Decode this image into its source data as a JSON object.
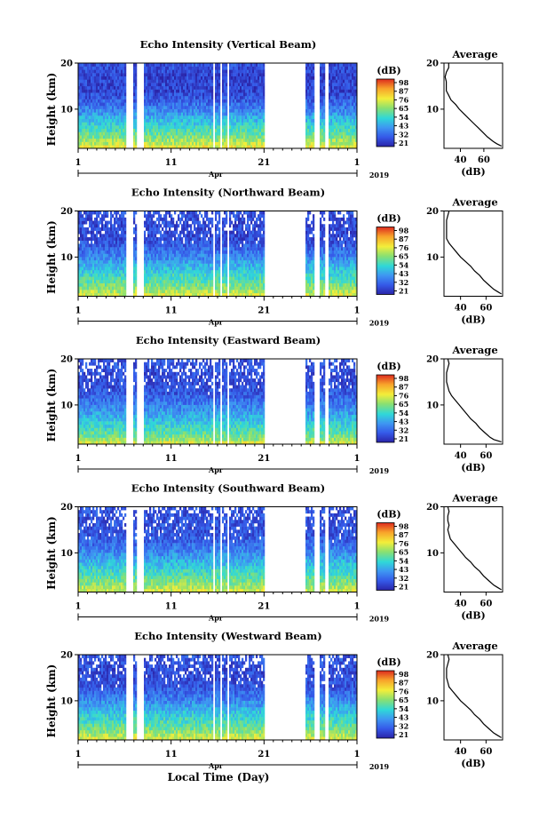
{
  "figure": {
    "xlabel": "Local Time (Day)",
    "month_label": "Apr",
    "year_label": "2019"
  },
  "chart_data": {
    "type": "heatmap",
    "x_ticks": [
      "1",
      "11",
      "21",
      "1"
    ],
    "x_range_days": [
      1,
      31
    ],
    "y_ticks": [
      20,
      10
    ],
    "y_range_km": [
      1.5,
      20
    ],
    "ylabel": "Height (km)",
    "colorbar_title": "(dB)",
    "colorbar_ticks": [
      "98",
      "87",
      "76",
      "65",
      "54",
      "43",
      "32",
      "21"
    ],
    "colorbar_range_db": [
      21,
      98
    ],
    "data_gaps_days": [
      [
        6.2,
        6.9
      ],
      [
        7.3,
        8.0
      ],
      [
        15.5,
        15.8
      ],
      [
        16.2,
        16.5
      ],
      [
        17.0,
        17.3
      ],
      [
        21.0,
        25.4
      ],
      [
        26.4,
        27.0
      ],
      [
        27.5,
        28.0
      ]
    ],
    "profile_title": "Average",
    "profile_xlabel": "(dB)",
    "panels": [
      {
        "title": "Echo Intensity (Vertical Beam)",
        "profile_x_ticks": [
          "40",
          "60"
        ],
        "profile_x_range_db": [
          26,
          76
        ],
        "profile_heights_km": [
          2,
          2.5,
          3,
          4,
          5,
          6,
          7,
          8,
          9,
          10,
          11,
          12,
          13,
          14,
          15,
          16,
          17,
          18,
          19,
          20
        ],
        "profile_db": [
          75,
          71,
          68,
          63,
          59,
          55,
          51,
          47,
          43,
          39,
          36,
          32,
          30,
          28,
          28,
          28,
          27,
          28,
          30,
          30
        ]
      },
      {
        "title": "Echo Intensity (Northward Beam)",
        "profile_x_ticks": [
          "40",
          "60"
        ],
        "profile_x_range_db": [
          27,
          73
        ],
        "profile_heights_km": [
          2,
          2.5,
          3,
          4,
          5,
          6,
          7,
          8,
          9,
          10,
          11,
          12,
          13,
          14,
          15,
          16,
          17,
          18,
          19,
          20
        ],
        "profile_db": [
          72,
          69,
          66,
          62,
          58,
          55,
          51,
          48,
          44,
          40,
          37,
          34,
          31,
          29,
          29,
          29,
          29,
          29,
          30,
          31
        ]
      },
      {
        "title": "Echo Intensity (Eastward Beam)",
        "profile_x_ticks": [
          "40",
          "60"
        ],
        "profile_x_range_db": [
          27,
          73
        ],
        "profile_heights_km": [
          2,
          2.5,
          3,
          4,
          5,
          6,
          7,
          8,
          9,
          10,
          11,
          12,
          13,
          14,
          15,
          16,
          17,
          18,
          19,
          20
        ],
        "profile_db": [
          72,
          66,
          63,
          59,
          55,
          52,
          48,
          45,
          42,
          39,
          36,
          33,
          31,
          30,
          29,
          29,
          29,
          30,
          31,
          30
        ]
      },
      {
        "title": "Echo Intensity (Southward Beam)",
        "profile_x_ticks": [
          "40",
          "60"
        ],
        "profile_x_range_db": [
          27,
          73
        ],
        "profile_heights_km": [
          2,
          2.5,
          3,
          4,
          5,
          6,
          7,
          8,
          9,
          10,
          11,
          12,
          13,
          14,
          15,
          16,
          17,
          18,
          19,
          20
        ],
        "profile_db": [
          72,
          69,
          66,
          62,
          58,
          55,
          51,
          48,
          44,
          41,
          38,
          35,
          32,
          31,
          30,
          31,
          30,
          30,
          31,
          30
        ]
      },
      {
        "title": "Echo Intensity (Westward Beam)",
        "profile_x_ticks": [
          "40",
          "60"
        ],
        "profile_x_range_db": [
          27,
          73
        ],
        "profile_heights_km": [
          2,
          2.5,
          3,
          4,
          5,
          6,
          7,
          8,
          9,
          10,
          11,
          12,
          13,
          14,
          15,
          16,
          17,
          18,
          19,
          20
        ],
        "profile_db": [
          72,
          69,
          66,
          62,
          58,
          55,
          51,
          48,
          44,
          40,
          37,
          34,
          31,
          30,
          29,
          29,
          29,
          30,
          31,
          30
        ]
      }
    ]
  }
}
